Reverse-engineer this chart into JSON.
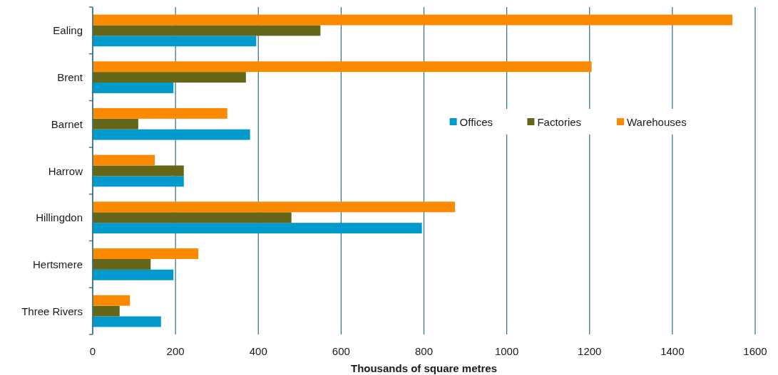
{
  "chart_data": {
    "type": "bar",
    "orientation": "horizontal",
    "xlabel": "Thousands of square metres",
    "categories": [
      "Ealing",
      "Brent",
      "Barnet",
      "Harrow",
      "Hillingdon",
      "Hertsmere",
      "Three Rivers"
    ],
    "series": [
      {
        "name": "Offices",
        "color": "#009acd",
        "values": [
          395,
          195,
          380,
          220,
          795,
          195,
          165
        ]
      },
      {
        "name": "Factories",
        "color": "#666619",
        "values": [
          550,
          370,
          110,
          220,
          480,
          140,
          65
        ]
      },
      {
        "name": "Warehouses",
        "color": "#fb8a00",
        "values": [
          1545,
          1205,
          325,
          150,
          875,
          255,
          90
        ]
      }
    ],
    "xlim": [
      0,
      1600
    ],
    "xticks": [
      0,
      200,
      400,
      600,
      800,
      1000,
      1200,
      1400,
      1600
    ],
    "grid": "x",
    "legend": "right"
  }
}
